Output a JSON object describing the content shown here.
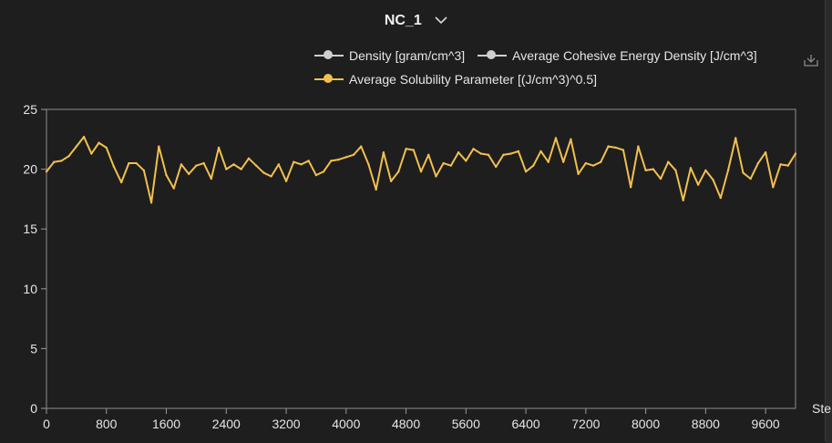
{
  "header": {
    "title": "NC_1"
  },
  "chart_data": {
    "type": "line",
    "title": "NC_1",
    "xlabel": "Ste",
    "ylabel": "",
    "xlim": [
      0,
      10000
    ],
    "ylim": [
      0,
      25
    ],
    "x_ticks": [
      "0",
      "800",
      "1600",
      "2400",
      "3200",
      "4000",
      "4800",
      "5600",
      "6400",
      "7200",
      "8000",
      "8800",
      "9600"
    ],
    "y_ticks": [
      "0",
      "5",
      "10",
      "15",
      "20",
      "25"
    ],
    "legend": [
      {
        "name": "Density [gram/cm^3]",
        "color": "#cfcfcf"
      },
      {
        "name": "Average Cohesive Energy Density [J/cm^3]",
        "color": "#cfcfcf"
      },
      {
        "name": "Average Solubility Parameter [(J/cm^3)^0.5]",
        "color": "#f2c04f"
      }
    ],
    "series": [
      {
        "name": "Average Solubility Parameter [(J/cm^3)^0.5]",
        "color": "#f2c04f",
        "x": [
          0,
          100,
          200,
          300,
          400,
          500,
          600,
          700,
          800,
          900,
          1000,
          1100,
          1200,
          1300,
          1400,
          1500,
          1600,
          1700,
          1800,
          1900,
          2000,
          2100,
          2200,
          2300,
          2400,
          2500,
          2600,
          2700,
          2800,
          2900,
          3000,
          3100,
          3200,
          3300,
          3400,
          3500,
          3600,
          3700,
          3800,
          3900,
          4000,
          4100,
          4200,
          4300,
          4400,
          4500,
          4600,
          4700,
          4800,
          4900,
          5000,
          5100,
          5200,
          5300,
          5400,
          5500,
          5600,
          5700,
          5800,
          5900,
          6000,
          6100,
          6200,
          6300,
          6400,
          6500,
          6600,
          6700,
          6800,
          6900,
          7000,
          7100,
          7200,
          7300,
          7400,
          7500,
          7600,
          7700,
          7800,
          7900,
          8000,
          8100,
          8200,
          8300,
          8400,
          8500,
          8600,
          8700,
          8800,
          8900,
          9000,
          9100,
          9200,
          9300,
          9400,
          9500,
          9600,
          9700,
          9800,
          9900,
          10000
        ],
        "values": [
          19.8,
          20.6,
          20.7,
          21.1,
          21.9,
          22.7,
          21.3,
          22.2,
          21.8,
          20.2,
          18.9,
          20.5,
          20.5,
          19.9,
          17.2,
          21.9,
          19.5,
          18.4,
          20.4,
          19.6,
          20.3,
          20.5,
          19.2,
          21.8,
          20.0,
          20.4,
          20.0,
          20.9,
          20.3,
          19.7,
          19.4,
          20.4,
          19.0,
          20.6,
          20.4,
          20.7,
          19.5,
          19.8,
          20.7,
          20.8,
          21.0,
          21.2,
          21.9,
          20.4,
          18.3,
          21.4,
          19.0,
          19.8,
          21.7,
          21.6,
          19.8,
          21.2,
          19.4,
          20.5,
          20.3,
          21.4,
          20.7,
          21.7,
          21.3,
          21.2,
          20.2,
          21.2,
          21.3,
          21.5,
          19.8,
          20.3,
          21.5,
          20.6,
          22.6,
          20.6,
          22.5,
          19.6,
          20.5,
          20.3,
          20.6,
          21.9,
          21.8,
          21.6,
          18.5,
          21.9,
          19.9,
          20.0,
          19.2,
          20.6,
          19.9,
          17.4,
          20.1,
          18.7,
          19.9,
          19.1,
          17.6,
          19.9,
          22.6,
          19.7,
          19.2,
          20.5,
          21.4,
          18.5,
          20.4,
          20.3,
          21.3
        ]
      }
    ],
    "grid": false,
    "legend_position": "top-right"
  }
}
